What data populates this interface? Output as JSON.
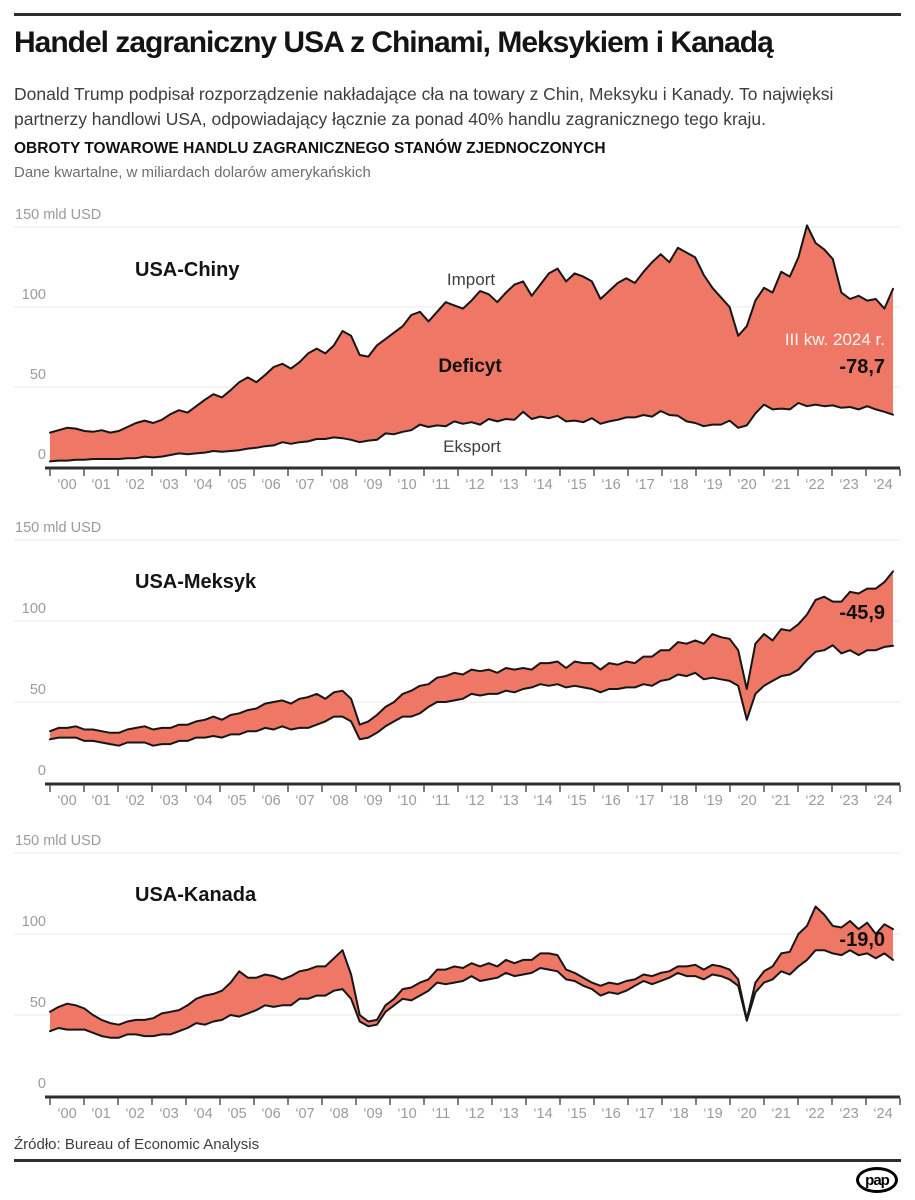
{
  "header": {
    "title": "Handel zagraniczny USA z Chinami, Meksykiem i Kanadą",
    "lead": "Donald Trump podpisał rozporządzenie nakładające cła na towary z Chin, Meksyku i Kanady. To najwięksi partnerzy handlowi USA, odpowiadający łącznie za ponad 40% handlu zagranicznego tego kraju.",
    "section_title": "OBROTY TOWAROWE HANDLU ZAGRANICZNEGO STANÓW ZJEDNOCZONYCH",
    "section_subtitle": "Dane kwartalne, w miliardach dolarów amerykańskich"
  },
  "footer": {
    "source": "Źródło: Bureau of Economic Analysis",
    "logo_text": "pap"
  },
  "colors": {
    "band_fill": "#ee7765",
    "line": "#161616",
    "grid": "#e9e9e9",
    "axis": "#2e2e2e",
    "tick": "#555555",
    "tick_label": "#9b9b9b",
    "title": "#141414",
    "series_label": "#3f3f3f",
    "annotation_light": "rgba(255,255,255,0.92)",
    "annotation_value": "#101010"
  },
  "chart_data": [
    {
      "type": "area",
      "title": "USA-Chiny",
      "unit_label": "150 mld USD",
      "ylim": [
        0,
        150
      ],
      "y_ticks": [
        0,
        50,
        100,
        150
      ],
      "x_tick_labels": [
        "‘00",
        "‘01",
        "‘02",
        "‘03",
        "‘04",
        "‘05",
        "‘06",
        "‘07",
        "‘08",
        "‘09",
        "‘10",
        "‘11",
        "‘12",
        "‘13",
        "‘14",
        "‘15",
        "‘16",
        "‘17",
        "‘18",
        "‘19",
        "‘20",
        "‘21",
        "‘22",
        "‘23",
        "‘24"
      ],
      "frequency": "quarterly",
      "x_start": "2000 Q1",
      "x_end": "2024 Q3",
      "overlay_labels": [
        {
          "text": "Import"
        },
        {
          "text": "Deficyt"
        },
        {
          "text": "Eksport"
        }
      ],
      "annotation": {
        "period": "III kw. 2024 r.",
        "value": "-78,7"
      },
      "series": [
        {
          "name": "Import",
          "values": [
            21.5,
            23,
            24.5,
            24,
            22.5,
            22,
            23,
            21.5,
            22.5,
            25,
            27.5,
            29,
            27.5,
            29.5,
            33,
            35.5,
            34,
            38,
            42,
            45.5,
            43.5,
            48,
            53,
            56,
            53,
            57.5,
            62.5,
            64.5,
            61.5,
            65.5,
            71,
            74,
            71,
            76,
            85,
            82,
            70,
            69,
            76,
            80,
            84,
            88,
            95,
            97,
            91,
            97,
            103,
            101,
            99,
            104,
            110,
            108,
            103,
            109,
            114,
            116,
            107,
            114,
            121,
            124,
            116,
            121,
            119,
            116,
            105,
            110,
            115,
            118,
            115,
            122,
            128,
            133,
            128,
            137,
            134,
            131,
            120,
            112,
            106,
            100,
            82,
            88,
            104,
            112,
            109,
            122,
            119,
            131,
            151,
            140,
            136,
            130,
            109,
            105,
            107,
            104,
            105,
            99,
            111.4
          ]
        },
        {
          "name": "Eksport",
          "values": [
            3.5,
            4,
            4,
            4.5,
            4.5,
            5,
            5,
            5,
            5,
            5.5,
            5.5,
            6.5,
            6,
            6.5,
            7.5,
            8.5,
            8,
            8.5,
            9,
            10,
            9.5,
            10,
            10.5,
            11.5,
            12,
            13,
            13.5,
            15.5,
            14.5,
            15.5,
            16,
            17.5,
            17.5,
            18.5,
            18,
            17,
            15.5,
            16.5,
            17,
            21,
            20.5,
            22,
            23,
            26.5,
            25,
            26,
            25.5,
            28.5,
            27,
            28,
            26.5,
            30,
            28.5,
            30,
            29.5,
            34.5,
            30,
            31.5,
            30.5,
            32,
            28.5,
            29,
            28,
            30.5,
            27,
            28.5,
            29.5,
            31,
            31,
            32.5,
            31.5,
            35,
            32.5,
            32,
            28.5,
            27.5,
            25.5,
            26.5,
            26.5,
            29,
            24.5,
            26,
            33.5,
            39,
            36,
            36.5,
            36,
            40,
            38,
            39,
            38,
            38.5,
            37,
            37.5,
            36,
            38,
            36,
            34.5,
            32.7
          ]
        }
      ]
    },
    {
      "type": "area",
      "title": "USA-Meksyk",
      "unit_label": "150 mld USD",
      "ylim": [
        0,
        150
      ],
      "y_ticks": [
        0,
        50,
        100,
        150
      ],
      "x_tick_labels": [
        "‘00",
        "‘01",
        "‘02",
        "‘03",
        "‘04",
        "‘05",
        "‘06",
        "‘07",
        "‘08",
        "‘09",
        "‘10",
        "‘11",
        "‘12",
        "‘13",
        "‘14",
        "‘15",
        "‘16",
        "‘17",
        "‘18",
        "‘19",
        "‘20",
        "‘21",
        "‘22",
        "‘23",
        "‘24"
      ],
      "frequency": "quarterly",
      "x_start": "2000 Q1",
      "x_end": "2024 Q3",
      "overlay_labels": [],
      "annotation": {
        "value": "-45,9"
      },
      "series": [
        {
          "name": "Import",
          "values": [
            32,
            34,
            34,
            35,
            33,
            33,
            32,
            31,
            31,
            33,
            34,
            35,
            33,
            34,
            34,
            36,
            36,
            38,
            39,
            41,
            39,
            42,
            43,
            45,
            46,
            49,
            50,
            51,
            49,
            52,
            53,
            55,
            52,
            56,
            57,
            52,
            36,
            38,
            42,
            47,
            50,
            55,
            57,
            60,
            61,
            65,
            66,
            68,
            67,
            70,
            69,
            70,
            68,
            71,
            70,
            71,
            70,
            74,
            74,
            75,
            71,
            75,
            74,
            74,
            70,
            74,
            73,
            75,
            74,
            78,
            78,
            82,
            82,
            87,
            86,
            88,
            86,
            92,
            90,
            89,
            82,
            58,
            86,
            92,
            88,
            95,
            94,
            98,
            104,
            113,
            115,
            112,
            112,
            118,
            117,
            120,
            120,
            124,
            130.6
          ]
        },
        {
          "name": "Eksport",
          "values": [
            27,
            28,
            28,
            28,
            26,
            26,
            25,
            24,
            23,
            25,
            25,
            25,
            23,
            24,
            24,
            26,
            26,
            28,
            28,
            29,
            28,
            30,
            30,
            32,
            32,
            34,
            33,
            35,
            33,
            34,
            34,
            36,
            38,
            41,
            41,
            38,
            27,
            28,
            31,
            35,
            38,
            41,
            41,
            43,
            47,
            50,
            50,
            51,
            52,
            55,
            54,
            55,
            55,
            57,
            56,
            58,
            59,
            61,
            60,
            61,
            59,
            60,
            59,
            58,
            56,
            58,
            58,
            59,
            59,
            61,
            60,
            63,
            64,
            67,
            66,
            68,
            64,
            65,
            64,
            63,
            60,
            39,
            55,
            60,
            63,
            66,
            67,
            70,
            76,
            81,
            82,
            85,
            80,
            82,
            79,
            82,
            82,
            84,
            84.7
          ]
        }
      ]
    },
    {
      "type": "area",
      "title": "USA-Kanada",
      "unit_label": "150 mld USD",
      "ylim": [
        0,
        150
      ],
      "y_ticks": [
        0,
        50,
        100,
        150
      ],
      "x_tick_labels": [
        "‘00",
        "‘01",
        "‘02",
        "‘03",
        "‘04",
        "‘05",
        "‘06",
        "‘07",
        "‘08",
        "‘09",
        "‘10",
        "‘11",
        "‘12",
        "‘13",
        "‘14",
        "‘15",
        "‘16",
        "‘17",
        "‘18",
        "‘19",
        "‘20",
        "‘21",
        "‘22",
        "‘23",
        "‘24"
      ],
      "frequency": "quarterly",
      "x_start": "2000 Q1",
      "x_end": "2024 Q3",
      "overlay_labels": [],
      "annotation": {
        "value": "-19,0"
      },
      "series": [
        {
          "name": "Import",
          "values": [
            52,
            55,
            57,
            56,
            54,
            50,
            47,
            45,
            44,
            46,
            47,
            47,
            48,
            51,
            52,
            53,
            56,
            60,
            62,
            63,
            65,
            70,
            77,
            73,
            73,
            75,
            74,
            72,
            74,
            77,
            78,
            80,
            80,
            85,
            90,
            75,
            50,
            46,
            47,
            56,
            60,
            66,
            67,
            70,
            72,
            78,
            78,
            80,
            79,
            82,
            80,
            82,
            80,
            84,
            82,
            84,
            84,
            88,
            88,
            87,
            78,
            76,
            73,
            70,
            68,
            70,
            69,
            71,
            72,
            75,
            74,
            76,
            77,
            80,
            80,
            81,
            78,
            81,
            80,
            78,
            72,
            47.5,
            70,
            77,
            80,
            88,
            89,
            100,
            105,
            117,
            112,
            105,
            104,
            108,
            103,
            107,
            100,
            106,
            103
          ]
        },
        {
          "name": "Eksport",
          "values": [
            40,
            42,
            41,
            41,
            41,
            39,
            37,
            36,
            36,
            38,
            38,
            37,
            37,
            38,
            38,
            40,
            42,
            45,
            44,
            46,
            47,
            50,
            49,
            51,
            53,
            56,
            55,
            56,
            56,
            60,
            60,
            62,
            62,
            65,
            66,
            60,
            46,
            43,
            44,
            52,
            56,
            60,
            59,
            62,
            65,
            70,
            69,
            70,
            71,
            74,
            71,
            72,
            73,
            76,
            74,
            75,
            76,
            79,
            78,
            77,
            72,
            71,
            68,
            66,
            62,
            64,
            63,
            65,
            68,
            71,
            69,
            71,
            73,
            76,
            74,
            74,
            72,
            75,
            74,
            72,
            68,
            46.5,
            64,
            70,
            72,
            77,
            75,
            80,
            84,
            90,
            90,
            88,
            87,
            90,
            87,
            88,
            85,
            88,
            84
          ]
        }
      ]
    }
  ]
}
